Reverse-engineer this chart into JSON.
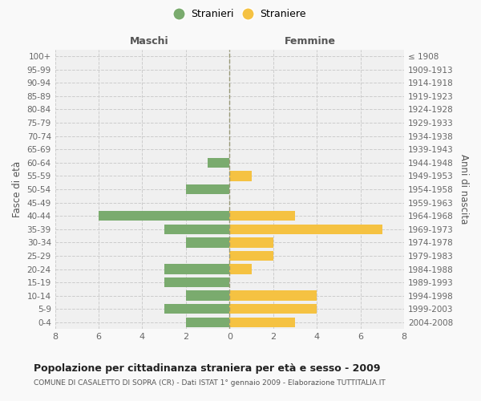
{
  "age_groups": [
    "0-4",
    "5-9",
    "10-14",
    "15-19",
    "20-24",
    "25-29",
    "30-34",
    "35-39",
    "40-44",
    "45-49",
    "50-54",
    "55-59",
    "60-64",
    "65-69",
    "70-74",
    "75-79",
    "80-84",
    "85-89",
    "90-94",
    "95-99",
    "100+"
  ],
  "birth_years": [
    "2004-2008",
    "1999-2003",
    "1994-1998",
    "1989-1993",
    "1984-1988",
    "1979-1983",
    "1974-1978",
    "1969-1973",
    "1964-1968",
    "1959-1963",
    "1954-1958",
    "1949-1953",
    "1944-1948",
    "1939-1943",
    "1934-1938",
    "1929-1933",
    "1924-1928",
    "1919-1923",
    "1914-1918",
    "1909-1913",
    "≤ 1908"
  ],
  "males": [
    2,
    3,
    2,
    3,
    3,
    0,
    2,
    3,
    6,
    0,
    2,
    0,
    1,
    0,
    0,
    0,
    0,
    0,
    0,
    0,
    0
  ],
  "females": [
    3,
    4,
    4,
    0,
    1,
    2,
    2,
    7,
    3,
    0,
    0,
    1,
    0,
    0,
    0,
    0,
    0,
    0,
    0,
    0,
    0
  ],
  "male_color": "#7aab6e",
  "female_color": "#f5c242",
  "grid_color": "#cccccc",
  "background_color": "#f9f9f9",
  "plot_bg_color": "#f0f0f0",
  "title": "Popolazione per cittadinanza straniera per età e sesso - 2009",
  "subtitle": "COMUNE DI CASALETTO DI SOPRA (CR) - Dati ISTAT 1° gennaio 2009 - Elaborazione TUTTITALIA.IT",
  "xlabel_left": "Maschi",
  "xlabel_right": "Femmine",
  "ylabel_left": "Fasce di età",
  "ylabel_right": "Anni di nascita",
  "legend_male": "Stranieri",
  "legend_female": "Straniere",
  "xlim": 8,
  "bar_height": 0.75
}
